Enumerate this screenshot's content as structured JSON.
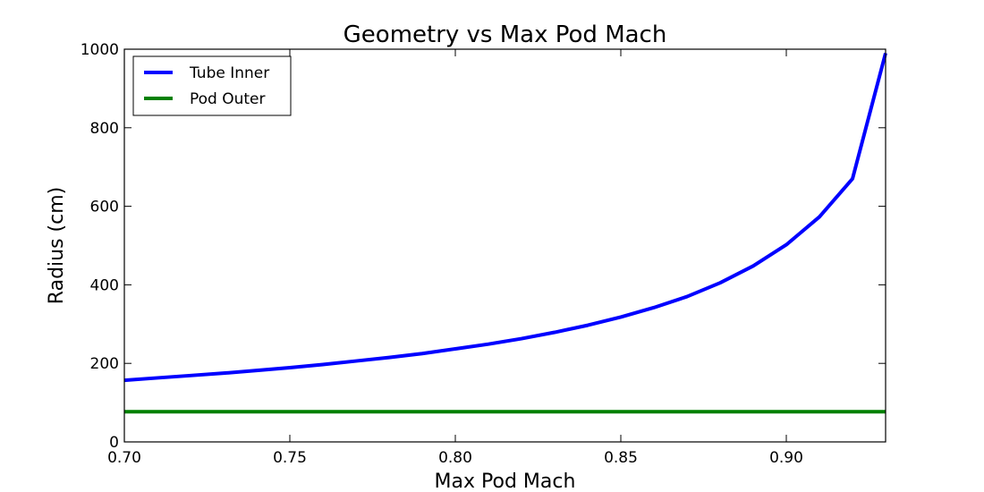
{
  "chart_data": {
    "type": "line",
    "title": "Geometry vs Max Pod Mach",
    "xlabel": "Max Pod Mach",
    "ylabel": "Radius (cm)",
    "xlim": [
      0.7,
      0.93
    ],
    "ylim": [
      0,
      1000
    ],
    "x_ticks": [
      0.7,
      0.75,
      0.8,
      0.85,
      0.9
    ],
    "x_tick_labels": [
      "0.70",
      "0.75",
      "0.80",
      "0.85",
      "0.90"
    ],
    "y_ticks": [
      0,
      200,
      400,
      600,
      800,
      1000
    ],
    "y_tick_labels": [
      "0",
      "200",
      "400",
      "600",
      "800",
      "1000"
    ],
    "grid": false,
    "legend_position": "top-left",
    "series": [
      {
        "name": "Tube Inner",
        "color": "#0000ff",
        "x": [
          0.7,
          0.71,
          0.72,
          0.73,
          0.74,
          0.75,
          0.76,
          0.77,
          0.78,
          0.79,
          0.8,
          0.81,
          0.82,
          0.83,
          0.84,
          0.85,
          0.86,
          0.87,
          0.88,
          0.89,
          0.9,
          0.91,
          0.92,
          0.93
        ],
        "y": [
          157,
          163,
          169,
          175,
          182,
          189,
          197,
          206,
          215,
          225,
          237,
          249,
          263,
          279,
          297,
          318,
          342,
          370,
          405,
          448,
          502,
          573,
          670,
          990
        ]
      },
      {
        "name": "Pod Outer",
        "color": "#008000",
        "x": [
          0.7,
          0.93
        ],
        "y": [
          77,
          77
        ]
      }
    ]
  }
}
